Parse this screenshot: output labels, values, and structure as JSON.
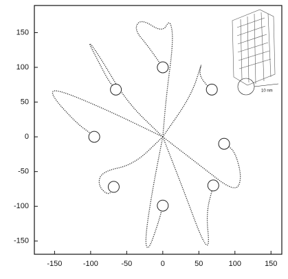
{
  "chart_data": {
    "type": "line",
    "xlim": [
      -178,
      165
    ],
    "ylim": [
      -169,
      189
    ],
    "xticks": [
      -150,
      -100,
      -50,
      0,
      50,
      100,
      150
    ],
    "yticks": [
      -150,
      -100,
      -50,
      0,
      50,
      100,
      150
    ],
    "annotation": "10 nm",
    "series": [
      {
        "color": "#222",
        "x": [
          0,
          5,
          15,
          10,
          0,
          -30,
          -40,
          -20,
          0
        ],
        "values": [
          0,
          60,
          140,
          170,
          150,
          170,
          155,
          130,
          100
        ]
      },
      {
        "color": "#222",
        "x": [
          0,
          -50,
          -90,
          -105,
          -90,
          -75,
          -65
        ],
        "values": [
          0,
          50,
          120,
          140,
          110,
          80,
          68
        ]
      },
      {
        "color": "#222",
        "x": [
          0,
          -80,
          -150,
          -155,
          -120,
          -100,
          -95
        ],
        "values": [
          0,
          40,
          70,
          60,
          20,
          5,
          0
        ]
      },
      {
        "color": "#222",
        "x": [
          0,
          -40,
          -85,
          -90,
          -75,
          -68
        ],
        "values": [
          0,
          -40,
          -50,
          -70,
          -85,
          -72
        ]
      },
      {
        "color": "#222",
        "x": [
          0,
          -15,
          -25,
          -20,
          -5,
          0
        ],
        "values": [
          0,
          -80,
          -150,
          -165,
          -120,
          -99
        ]
      },
      {
        "color": "#222",
        "x": [
          0,
          30,
          55,
          65,
          60,
          70
        ],
        "values": [
          0,
          -80,
          -150,
          -160,
          -110,
          -70
        ]
      },
      {
        "color": "#222",
        "x": [
          0,
          50,
          100,
          110,
          100,
          85
        ],
        "values": [
          0,
          -40,
          -80,
          -60,
          -20,
          -10
        ]
      },
      {
        "color": "#222",
        "x": [
          0,
          40,
          55,
          50,
          60,
          68
        ],
        "values": [
          0,
          60,
          110,
          90,
          75,
          68
        ]
      }
    ]
  }
}
